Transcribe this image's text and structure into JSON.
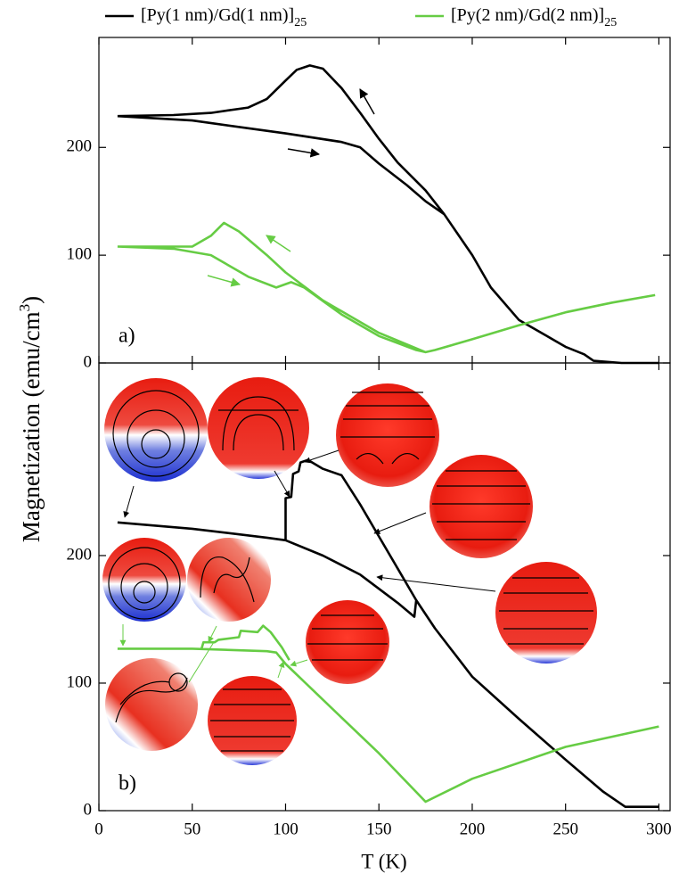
{
  "chart_data": [
    {
      "type": "line",
      "panel_label": "a)",
      "xlim": [
        0,
        306
      ],
      "xticks": [
        0,
        50,
        100,
        150,
        200,
        250,
        300
      ],
      "ylim": [
        0,
        302
      ],
      "yticks": [
        0,
        100,
        200
      ],
      "series": [
        {
          "name": "[Py(1 nm)/Gd(1 nm)]",
          "name_sub": "25",
          "color": "#000000",
          "x": [
            10,
            40,
            60,
            80,
            90,
            100,
            106,
            113,
            120,
            130,
            140,
            150,
            160,
            175,
            185,
            200,
            210,
            225,
            240,
            250,
            260,
            265,
            280,
            300,
            null,
            10,
            50,
            100,
            130,
            140,
            150,
            165,
            175,
            185
          ],
          "values": [
            229,
            230,
            232,
            237,
            245,
            262,
            272,
            276,
            273,
            255,
            232,
            208,
            186,
            160,
            138,
            100,
            70,
            40,
            25,
            15,
            8,
            2,
            0,
            0,
            null,
            229,
            225,
            213,
            205,
            200,
            185,
            165,
            150,
            138
          ]
        },
        {
          "name": "[Py(2 nm)/Gd(2 nm)]",
          "name_sub": "25",
          "color": "#66cc44",
          "x": [
            10,
            50,
            60,
            67,
            75,
            90,
            100,
            120,
            150,
            175,
            null,
            10,
            40,
            60,
            80,
            95,
            103,
            110,
            130,
            150,
            170,
            175,
            180,
            200,
            225,
            250,
            275,
            298
          ],
          "values": [
            108,
            108,
            118,
            130,
            122,
            100,
            84,
            58,
            28,
            10,
            null,
            108,
            106,
            100,
            80,
            70,
            75,
            70,
            45,
            25,
            12,
            10,
            12,
            22,
            35,
            47,
            56,
            63
          ]
        }
      ]
    },
    {
      "type": "line",
      "panel_label": "b)",
      "xlabel": "T (K)",
      "ylabel": "Magnetization (emu/cm",
      "ylabel_sup": "3",
      "ylabel_end": ")",
      "xlim": [
        0,
        306
      ],
      "xticks": [
        0,
        50,
        100,
        150,
        200,
        250,
        300
      ],
      "ylim": [
        0,
        351
      ],
      "yticks": [
        0,
        100,
        200
      ],
      "series": [
        {
          "color": "#000000",
          "x": [
            10,
            50,
            90,
            100,
            100,
            103,
            104,
            107,
            108,
            112,
            120,
            130,
            140,
            150,
            160,
            170,
            180,
            200,
            225,
            250,
            270,
            282,
            300,
            null,
            100,
            120,
            140,
            160,
            169,
            170
          ],
          "values": [
            226,
            221,
            214,
            212,
            245,
            246,
            264,
            266,
            273,
            275,
            268,
            263,
            240,
            215,
            190,
            165,
            143,
            105,
            72,
            40,
            15,
            3,
            3,
            null,
            212,
            200,
            185,
            163,
            152,
            165
          ]
        },
        {
          "color": "#66cc44",
          "x": [
            10,
            50,
            90,
            95,
            100,
            105,
            125,
            150,
            175,
            200,
            250,
            300,
            null,
            55,
            56,
            62,
            64,
            75,
            76,
            85,
            88,
            92,
            98,
            102
          ],
          "values": [
            127,
            127,
            125,
            124,
            115,
            108,
            80,
            45,
            7,
            25,
            50,
            66,
            null,
            127,
            132,
            132,
            134,
            136,
            141,
            140,
            145,
            140,
            128,
            118
          ]
        }
      ]
    }
  ]
}
